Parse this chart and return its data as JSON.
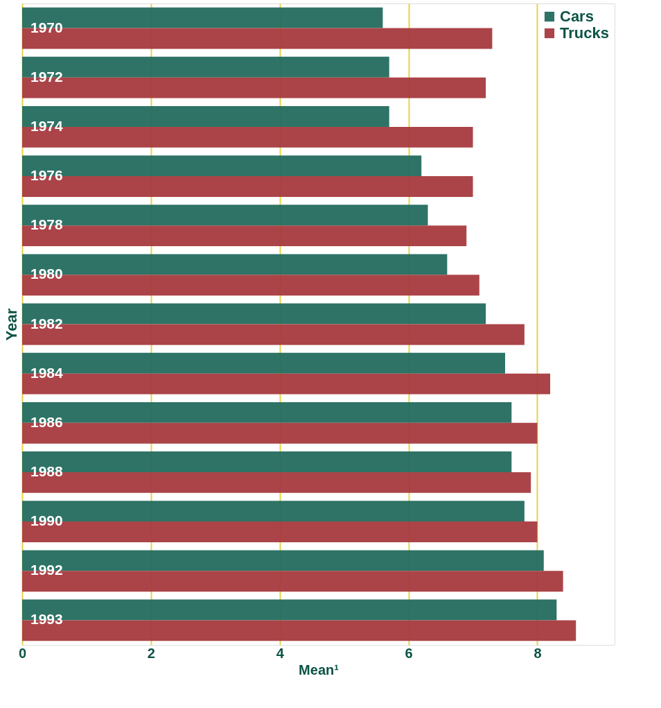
{
  "chart_data": {
    "type": "bar",
    "orientation": "horizontal",
    "xlabel": "Mean¹",
    "ylabel": "Year",
    "categories": [
      "1970",
      "1972",
      "1974",
      "1976",
      "1978",
      "1980",
      "1982",
      "1984",
      "1986",
      "1988",
      "1990",
      "1992",
      "1993"
    ],
    "series": [
      {
        "name": "Cars",
        "color": "#236b5e",
        "values": [
          5.6,
          5.7,
          5.7,
          6.2,
          6.3,
          6.6,
          7.2,
          7.5,
          7.6,
          7.6,
          7.8,
          8.1,
          8.3
        ]
      },
      {
        "name": "Trucks",
        "color": "#a63a3e",
        "values": [
          7.3,
          7.2,
          7.0,
          7.0,
          6.9,
          7.1,
          7.8,
          8.2,
          8.0,
          7.9,
          8.0,
          8.4,
          8.6
        ]
      }
    ],
    "xlim": [
      0,
      9.2
    ],
    "xticks": [
      0,
      2,
      4,
      6,
      8
    ],
    "grid": "x",
    "legend": "top right"
  }
}
